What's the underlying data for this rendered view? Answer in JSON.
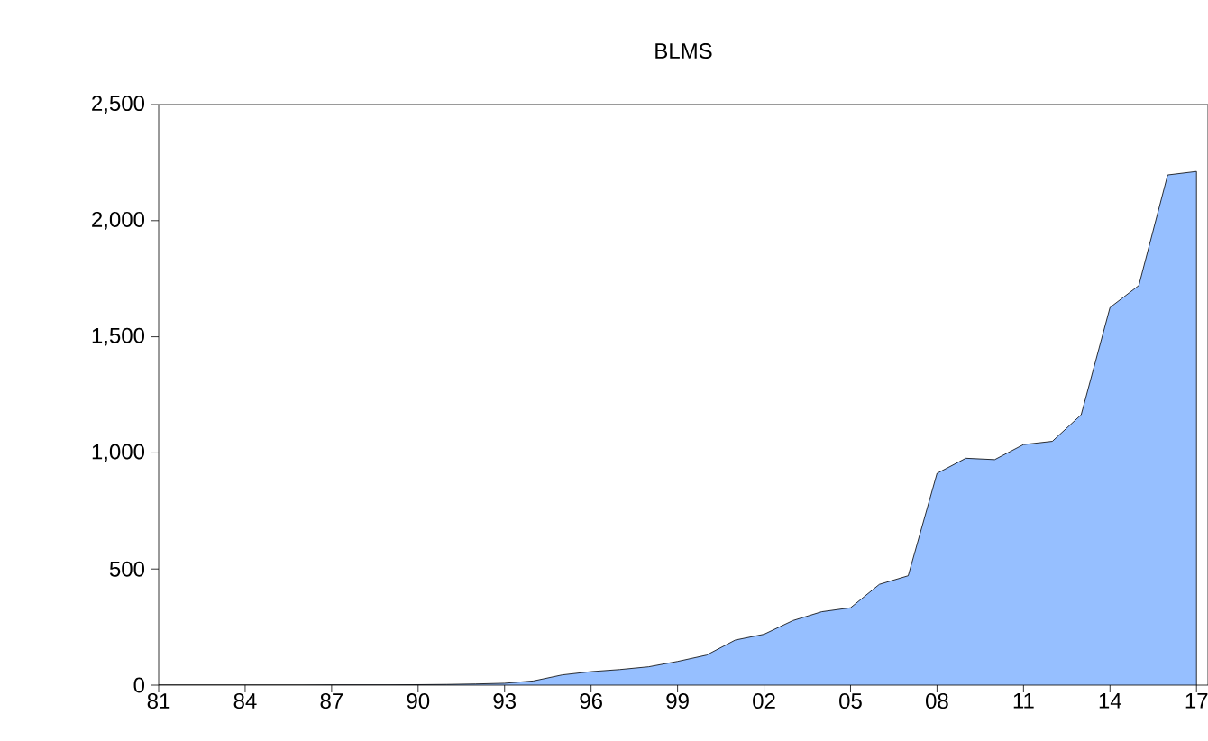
{
  "chart_data": {
    "type": "area",
    "title": "BLMS",
    "x": [
      1981,
      1982,
      1983,
      1984,
      1985,
      1986,
      1987,
      1988,
      1989,
      1990,
      1991,
      1992,
      1993,
      1994,
      1995,
      1996,
      1997,
      1998,
      1999,
      2000,
      2001,
      2002,
      2003,
      2004,
      2005,
      2006,
      2007,
      2008,
      2009,
      2010,
      2011,
      2012,
      2013,
      2014,
      2015,
      2016,
      2017
    ],
    "values": [
      0,
      0,
      0,
      0,
      0,
      0,
      1,
      1,
      1,
      2,
      3,
      5,
      8,
      18,
      44,
      58,
      67,
      79,
      102,
      129,
      194,
      219,
      278,
      316,
      333,
      434,
      471,
      912,
      977,
      971,
      1036,
      1050,
      1164,
      1626,
      1721,
      2197,
      2212
    ],
    "color": "#96bfff",
    "xlim": [
      1981,
      2017.4
    ],
    "ylim": [
      0,
      2500
    ],
    "xticks": [
      {
        "value": 1981,
        "label": "81"
      },
      {
        "value": 1984,
        "label": "84"
      },
      {
        "value": 1987,
        "label": "87"
      },
      {
        "value": 1990,
        "label": "90"
      },
      {
        "value": 1993,
        "label": "93"
      },
      {
        "value": 1996,
        "label": "96"
      },
      {
        "value": 1999,
        "label": "99"
      },
      {
        "value": 2002,
        "label": "02"
      },
      {
        "value": 2005,
        "label": "05"
      },
      {
        "value": 2008,
        "label": "08"
      },
      {
        "value": 2011,
        "label": "11"
      },
      {
        "value": 2014,
        "label": "14"
      },
      {
        "value": 2017,
        "label": "17"
      }
    ],
    "yticks": [
      0,
      {
        "value": 500,
        "label": "500"
      },
      {
        "value": 1000,
        "label": "1,000"
      },
      {
        "value": 1500,
        "label": "1,500"
      },
      {
        "value": 2000,
        "label": "2,000"
      },
      {
        "value": 2500,
        "label": "2,500"
      }
    ]
  }
}
